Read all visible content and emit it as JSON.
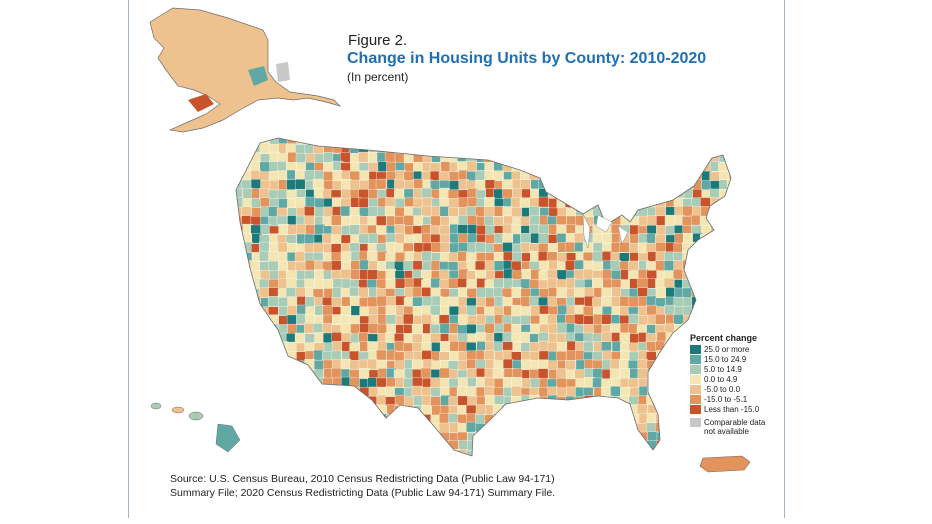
{
  "figure": {
    "label": "Figure 2.",
    "title": "Change in Housing Units by County: 2010-2020",
    "subtitle": "(In percent)"
  },
  "legend": {
    "title": "Percent change",
    "items": [
      {
        "label": "25.0 or more",
        "color": "#1c7a7a"
      },
      {
        "label": "15.0 to 24.9",
        "color": "#5fa8a3"
      },
      {
        "label": "5.0 to 14.9",
        "color": "#a9ccb6"
      },
      {
        "label": "0.0 to 4.9",
        "color": "#f3e6b3"
      },
      {
        "label": "-5.0 to 0.0",
        "color": "#eec28e"
      },
      {
        "label": "-15.0 to -5.1",
        "color": "#e3935c"
      },
      {
        "label": "Less than -15.0",
        "color": "#c9542b"
      }
    ],
    "not_available": {
      "label": "Comparable data not available",
      "color": "#c8c8c8"
    }
  },
  "source": {
    "line1": "Source: U.S. Census Bureau, 2010 Census Redistricting Data (Public Law 94-171)",
    "line2": "Summary File; 2020 Census Redistricting Data (Public Law 94-171) Summary File."
  }
}
